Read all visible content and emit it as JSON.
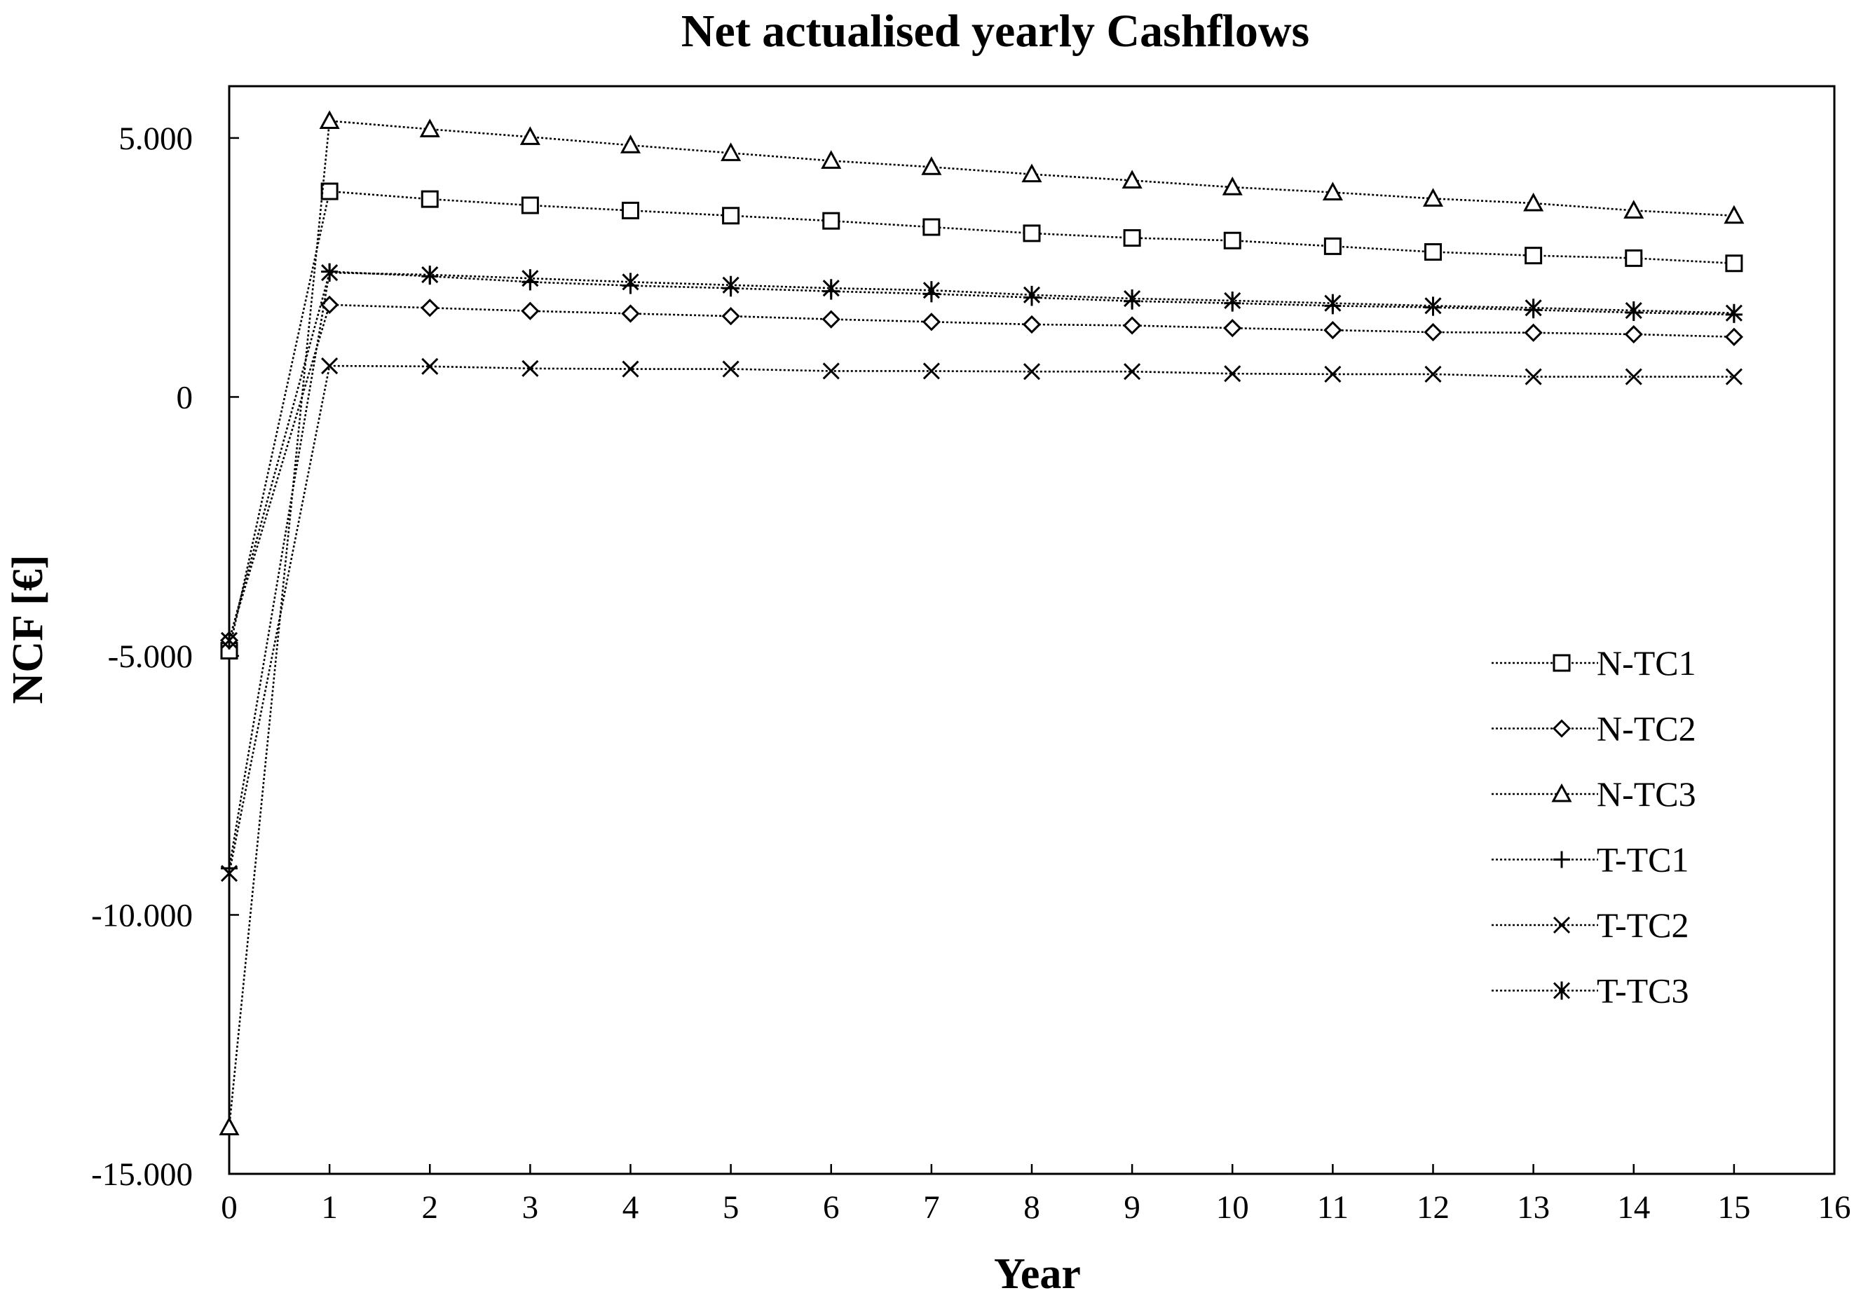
{
  "chart_data": {
    "type": "line",
    "title": "Net actualised yearly Cashflows",
    "xlabel": "Year",
    "ylabel": "NCF [€]",
    "xlim": [
      0,
      16
    ],
    "ylim": [
      -15000,
      6000
    ],
    "x_ticks": [
      "0",
      "1",
      "2",
      "3",
      "4",
      "5",
      "6",
      "7",
      "8",
      "9",
      "10",
      "11",
      "12",
      "13",
      "14",
      "15",
      "16"
    ],
    "y_ticks": [
      {
        "value": 5000,
        "label": "5.000"
      },
      {
        "value": 0,
        "label": "0"
      },
      {
        "value": -5000,
        "label": "-5.000"
      },
      {
        "value": -10000,
        "label": "-10.000"
      },
      {
        "value": -15000,
        "label": "-15.000"
      }
    ],
    "grid": false,
    "legend_position": "right",
    "x": [
      0,
      1,
      2,
      3,
      4,
      5,
      6,
      7,
      8,
      9,
      10,
      11,
      12,
      13,
      14,
      15
    ],
    "series": [
      {
        "name": "N-TC1",
        "marker": "square",
        "values": [
          -4900,
          3970,
          3820,
          3700,
          3600,
          3500,
          3400,
          3280,
          3160,
          3070,
          3020,
          2910,
          2800,
          2730,
          2680,
          2580
        ]
      },
      {
        "name": "N-TC2",
        "marker": "diamond",
        "values": [
          -4700,
          1780,
          1720,
          1660,
          1610,
          1560,
          1500,
          1450,
          1400,
          1380,
          1330,
          1290,
          1250,
          1240,
          1210,
          1160
        ]
      },
      {
        "name": "N-TC3",
        "marker": "triangle",
        "values": [
          -14100,
          5330,
          5170,
          5020,
          4860,
          4710,
          4560,
          4440,
          4300,
          4180,
          4050,
          3950,
          3830,
          3740,
          3600,
          3500
        ]
      },
      {
        "name": "T-TC1",
        "marker": "plus",
        "values": [
          -9100,
          2420,
          2330,
          2220,
          2150,
          2100,
          2040,
          1990,
          1920,
          1850,
          1810,
          1760,
          1730,
          1680,
          1630,
          1590
        ]
      },
      {
        "name": "T-TC2",
        "marker": "x",
        "values": [
          -9200,
          600,
          590,
          550,
          540,
          540,
          500,
          500,
          490,
          490,
          450,
          440,
          440,
          390,
          390,
          390
        ]
      },
      {
        "name": "T-TC3",
        "marker": "star",
        "values": [
          -4700,
          2400,
          2360,
          2290,
          2220,
          2160,
          2100,
          2060,
          1970,
          1900,
          1860,
          1810,
          1760,
          1720,
          1670,
          1620
        ]
      }
    ]
  }
}
